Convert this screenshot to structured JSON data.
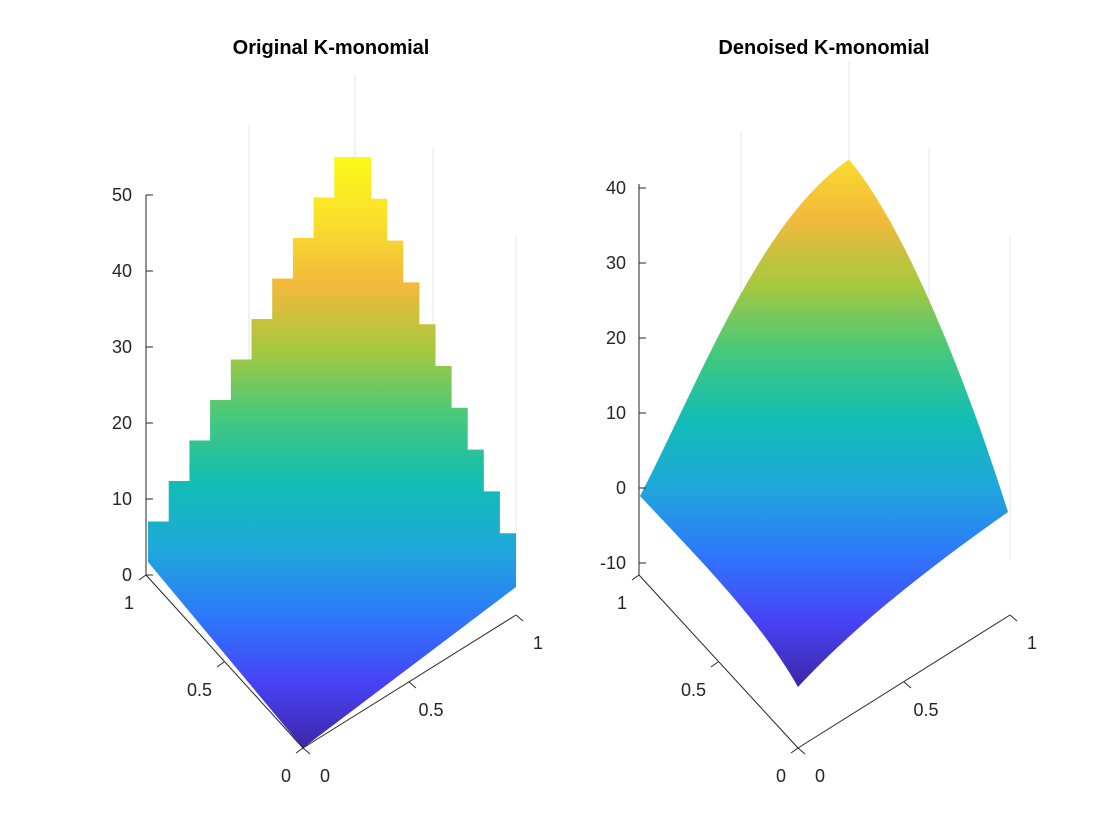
{
  "colors": {
    "colormap": [
      "#3e26a8",
      "#4743f6",
      "#2d79fb",
      "#1fa8db",
      "#12bdb5",
      "#45c97c",
      "#a6c83e",
      "#f3b93c",
      "#fae02c",
      "#f9fb15"
    ],
    "axis": "#262626",
    "grid": "#e6e6e6"
  },
  "chart_data": [
    {
      "type": "surface",
      "title": "Original K-monomial",
      "shape": "stepped pyramid",
      "xlabel": "",
      "ylabel": "",
      "zlabel": "",
      "xlim": [
        0,
        1
      ],
      "ylim": [
        0,
        1
      ],
      "zlim": [
        0,
        55
      ],
      "x_ticks": [
        "0",
        "0.5",
        "1"
      ],
      "y_ticks": [
        "0",
        "0.5",
        "1"
      ],
      "z_ticks": [
        "0",
        "10",
        "20",
        "30",
        "40",
        "50"
      ],
      "z_min": 0,
      "z_max": 55,
      "steps": 10,
      "grid": true
    },
    {
      "type": "surface",
      "title": "Denoised K-monomial",
      "shape": "smooth pyramid",
      "xlabel": "",
      "ylabel": "",
      "zlabel": "",
      "xlim": [
        0,
        1
      ],
      "ylim": [
        0,
        1
      ],
      "zlim": [
        -10,
        45
      ],
      "x_ticks": [
        "0",
        "0.5",
        "1"
      ],
      "y_ticks": [
        "0",
        "0.5",
        "1"
      ],
      "z_ticks": [
        "-10",
        "0",
        "10",
        "20",
        "30",
        "40"
      ],
      "z_min": -5,
      "z_max": 45,
      "grid": true
    }
  ]
}
